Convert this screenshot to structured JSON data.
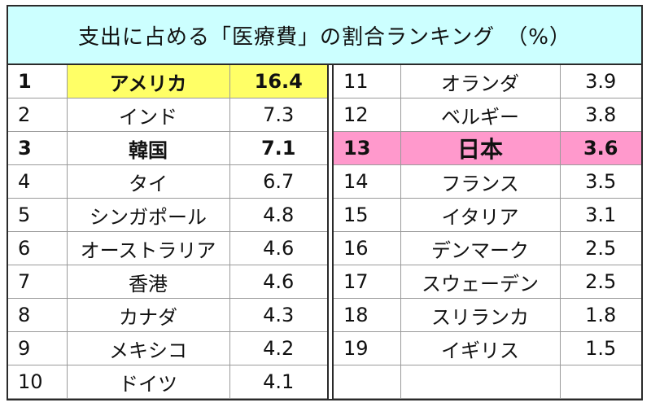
{
  "chart_data": {
    "type": "table",
    "title": "支出に占める「医療費」の割合ランキング　（%）",
    "highlight_colors": {
      "top": "#ffff66",
      "japan": "#ff99cc",
      "header": "#ccffff"
    },
    "left_rows": [
      {
        "rank": "1",
        "country": "アメリカ",
        "value": "16.4",
        "style": "yellow"
      },
      {
        "rank": "2",
        "country": "インド",
        "value": "7.3",
        "style": ""
      },
      {
        "rank": "3",
        "country": "韓国",
        "value": "7.1",
        "style": "bold"
      },
      {
        "rank": "4",
        "country": "タイ",
        "value": "6.7",
        "style": ""
      },
      {
        "rank": "5",
        "country": "シンガポール",
        "value": "4.8",
        "style": ""
      },
      {
        "rank": "6",
        "country": "オーストラリア",
        "value": "4.6",
        "style": ""
      },
      {
        "rank": "7",
        "country": "香港",
        "value": "4.6",
        "style": ""
      },
      {
        "rank": "8",
        "country": "カナダ",
        "value": "4.3",
        "style": ""
      },
      {
        "rank": "9",
        "country": "メキシコ",
        "value": "4.2",
        "style": ""
      },
      {
        "rank": "10",
        "country": "ドイツ",
        "value": "4.1",
        "style": ""
      }
    ],
    "right_rows": [
      {
        "rank": "11",
        "country": "オランダ",
        "value": "3.9",
        "style": ""
      },
      {
        "rank": "12",
        "country": "ベルギー",
        "value": "3.8",
        "style": ""
      },
      {
        "rank": "13",
        "country": "日本",
        "value": "3.6",
        "style": "pink"
      },
      {
        "rank": "14",
        "country": "フランス",
        "value": "3.5",
        "style": ""
      },
      {
        "rank": "15",
        "country": "イタリア",
        "value": "3.1",
        "style": ""
      },
      {
        "rank": "16",
        "country": "デンマーク",
        "value": "2.5",
        "style": ""
      },
      {
        "rank": "17",
        "country": "スウェーデン",
        "value": "2.5",
        "style": ""
      },
      {
        "rank": "18",
        "country": "スリランカ",
        "value": "1.8",
        "style": ""
      },
      {
        "rank": "19",
        "country": "イギリス",
        "value": "1.5",
        "style": ""
      },
      {
        "rank": "",
        "country": "",
        "value": "",
        "style": ""
      }
    ]
  }
}
